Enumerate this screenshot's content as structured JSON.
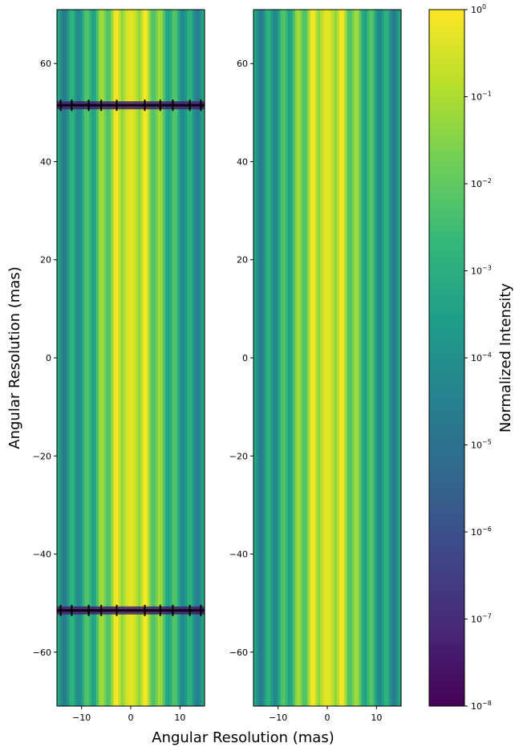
{
  "chart_data": [
    {
      "type": "heatmap",
      "panel": "left",
      "xlabel": "Angular Resolution (mas)",
      "ylabel": "Angular Resolution (mas)",
      "xlim": [
        -15,
        15
      ],
      "ylim": [
        -71,
        71
      ],
      "x_ticks": [
        -10,
        0,
        10
      ],
      "y_ticks": [
        60,
        40,
        20,
        0,
        -20,
        -40,
        -60
      ],
      "x_tick_labels": [
        "−10",
        "0",
        "10"
      ],
      "y_tick_labels": [
        "60",
        "40",
        "20",
        "0",
        "−20",
        "−40",
        "−60"
      ],
      "color_scale": "log",
      "colormap": "viridis",
      "fringe_period_mas": 3.0,
      "central_lobe_halfwidth_mas": 1.5,
      "null_rows_y": [
        51.5,
        -51.5
      ],
      "peak_normalized_intensity": 1.0
    },
    {
      "type": "heatmap",
      "panel": "right",
      "xlim": [
        -15,
        15
      ],
      "ylim": [
        -71,
        71
      ],
      "x_ticks": [
        -10,
        0,
        10
      ],
      "y_ticks": [
        60,
        40,
        20,
        0,
        -20,
        -40,
        -60
      ],
      "x_tick_labels": [
        "−10",
        "0",
        "10"
      ],
      "y_tick_labels": [
        "60",
        "40",
        "20",
        "0",
        "−20",
        "−40",
        "−60"
      ],
      "color_scale": "log",
      "colormap": "viridis",
      "fringe_period_mas": 3.0,
      "central_lobe_halfwidth_mas": 1.5,
      "null_rows_y": [],
      "peak_normalized_intensity": 1.0
    }
  ],
  "colorbar": {
    "label": "Normalized Intensity",
    "scale": "log",
    "range": [
      1e-08,
      1
    ],
    "ticks": [
      {
        "exp": 0,
        "base": "10",
        "sup": "0"
      },
      {
        "exp": -1,
        "base": "10",
        "sup": "−1"
      },
      {
        "exp": -2,
        "base": "10",
        "sup": "−2"
      },
      {
        "exp": -3,
        "base": "10",
        "sup": "−3"
      },
      {
        "exp": -4,
        "base": "10",
        "sup": "−4"
      },
      {
        "exp": -5,
        "base": "10",
        "sup": "−5"
      },
      {
        "exp": -6,
        "base": "10",
        "sup": "−6"
      },
      {
        "exp": -7,
        "base": "10",
        "sup": "−7"
      },
      {
        "exp": -8,
        "base": "10",
        "sup": "−8"
      }
    ],
    "colormap_stops": [
      "#440154",
      "#482878",
      "#3e4989",
      "#31688e",
      "#26828e",
      "#1f9e89",
      "#35b779",
      "#6ece58",
      "#b5de2b",
      "#fde725"
    ]
  }
}
